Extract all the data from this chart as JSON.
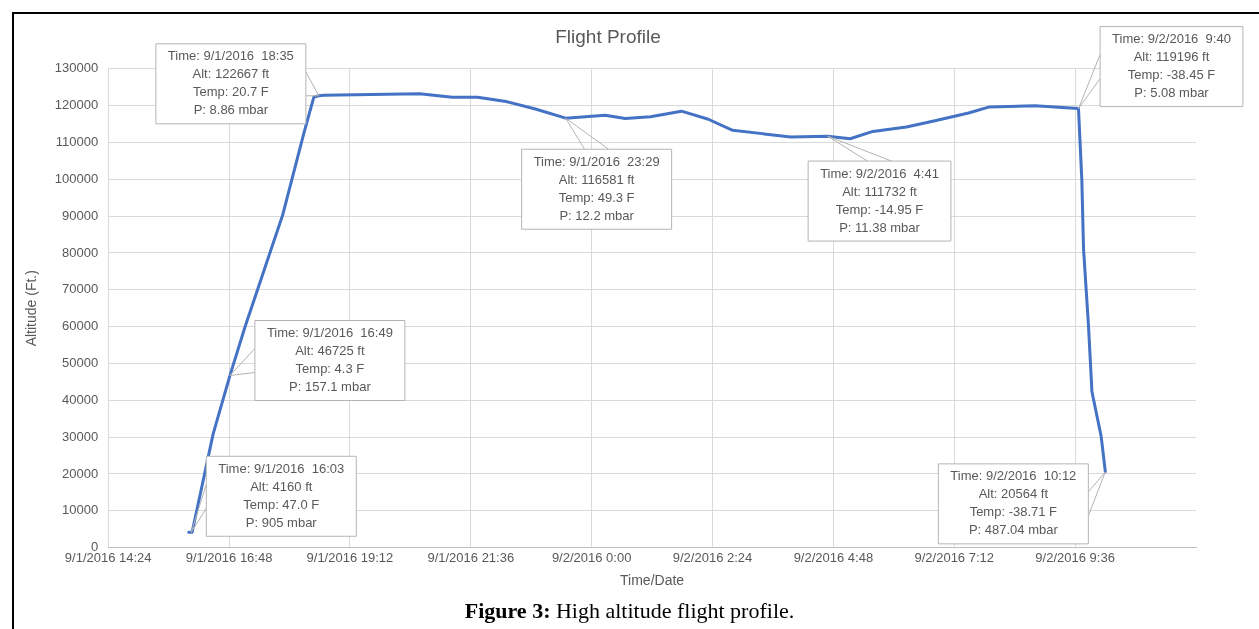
{
  "chart_data": {
    "type": "line",
    "title": "Flight Profile",
    "xlabel": "Time/Date",
    "ylabel": "Altitude (Ft.)",
    "x": [
      "2016-09-01T16:00",
      "2016-09-01T16:04",
      "2016-09-01T16:29",
      "2016-09-01T16:49",
      "2016-09-01T17:07",
      "2016-09-01T17:52",
      "2016-09-01T18:17",
      "2016-09-01T18:29",
      "2016-09-01T18:35",
      "2016-09-01T18:41",
      "2016-09-01T19:56",
      "2016-09-01T20:35",
      "2016-09-01T21:14",
      "2016-09-01T21:44",
      "2016-09-01T22:18",
      "2016-09-01T22:53",
      "2016-09-01T23:29",
      "2016-09-02T00:16",
      "2016-09-02T00:40",
      "2016-09-02T01:10",
      "2016-09-02T01:47",
      "2016-09-02T02:19",
      "2016-09-02T02:48",
      "2016-09-02T03:23",
      "2016-09-02T03:57",
      "2016-09-02T04:41",
      "2016-09-02T05:08",
      "2016-09-02T05:35",
      "2016-09-02T06:15",
      "2016-09-02T06:49",
      "2016-09-02T07:29",
      "2016-09-02T07:53",
      "2016-09-02T08:48",
      "2016-09-02T09:40",
      "2016-09-02T09:44",
      "2016-09-02T09:46",
      "2016-09-02T09:52",
      "2016-09-02T09:56",
      "2016-09-02T10:07",
      "2016-09-02T10:12"
    ],
    "series": [
      {
        "color": "#4472c4",
        "values": [
          4200,
          4200,
          30800,
          46700,
          59900,
          90400,
          112400,
          122300,
          122700,
          122800,
          123100,
          123200,
          122300,
          122300,
          121100,
          119100,
          116600,
          117400,
          116500,
          117000,
          118500,
          116300,
          113300,
          112400,
          111500,
          111700,
          111000,
          113000,
          114200,
          115900,
          118000,
          119600,
          120000,
          119200,
          99700,
          81200,
          59900,
          42400,
          30200,
          20600
        ]
      }
    ],
    "xlim": [
      "2016-09-01T14:24",
      "2016-09-02T12:00"
    ],
    "xticks": [
      {
        "value": "2016-09-01T14:24",
        "label": "9/1/2016 14:24"
      },
      {
        "value": "2016-09-01T16:48",
        "label": "9/1/2016 16:48"
      },
      {
        "value": "2016-09-01T19:12",
        "label": "9/1/2016 19:12"
      },
      {
        "value": "2016-09-01T21:36",
        "label": "9/1/2016 21:36"
      },
      {
        "value": "2016-09-02T00:00",
        "label": "9/2/2016 0:00"
      },
      {
        "value": "2016-09-02T02:24",
        "label": "9/2/2016 2:24"
      },
      {
        "value": "2016-09-02T04:48",
        "label": "9/2/2016 4:48"
      },
      {
        "value": "2016-09-02T07:12",
        "label": "9/2/2016 7:12"
      },
      {
        "value": "2016-09-02T09:36",
        "label": "9/2/2016 9:36"
      }
    ],
    "ylim": [
      0,
      130000
    ],
    "yticks": [
      0,
      10000,
      20000,
      30000,
      40000,
      50000,
      60000,
      70000,
      80000,
      90000,
      100000,
      110000,
      120000,
      130000
    ],
    "grid": true,
    "legend": false,
    "marker": "none",
    "line_style": "solid",
    "annotations": [
      {
        "text": "Time: 9/1/2016  16:03\nAlt: 4160 ft\nTemp: 47.0 F\nP: 905 mbar",
        "x": "2016-09-01T16:03",
        "y": 4160
      },
      {
        "text": "Time: 9/1/2016  16:49\nAlt: 46725 ft\nTemp: 4.3 F\nP: 157.1 mbar",
        "x": "2016-09-01T16:49",
        "y": 46725
      },
      {
        "text": "Time: 9/1/2016  18:35\nAlt: 122667 ft\nTemp: 20.7 F\nP: 8.86 mbar",
        "x": "2016-09-01T18:35",
        "y": 122667
      },
      {
        "text": "Time: 9/1/2016  23:29\nAlt: 116581 ft\nTemp: 49.3 F\nP: 12.2 mbar",
        "x": "2016-09-01T23:29",
        "y": 116581
      },
      {
        "text": "Time: 9/2/2016  4:41\nAlt: 111732 ft\nTemp: -14.95 F\nP: 11.38 mbar",
        "x": "2016-09-02T04:41",
        "y": 111732
      },
      {
        "text": "Time: 9/2/2016  9:40\nAlt: 119196 ft\nTemp: -38.45 F\nP: 5.08 mbar",
        "x": "2016-09-02T09:40",
        "y": 119196
      },
      {
        "text": "Time: 9/2/2016  10:12\nAlt: 20564 ft\nTemp: -38.71 F\nP: 487.04 mbar",
        "x": "2016-09-02T10:12",
        "y": 20564
      },
      "Figure 3: High altitude flight profile."
    ]
  }
}
